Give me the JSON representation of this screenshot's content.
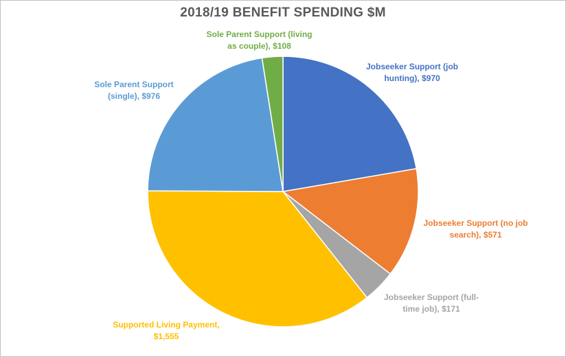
{
  "colors": {
    "title": "#595959",
    "border": "#bfbfbf"
  },
  "chart_data": {
    "type": "pie",
    "title": "2018/19 BENEFIT SPENDING $M",
    "start_angle_deg": 0,
    "direction": "clockwise",
    "slices": [
      {
        "label_lines": [
          "Jobseeker Support (job",
          "hunting), $970"
        ],
        "category": "Jobseeker Support (job hunting)",
        "value": 970,
        "color": "#4472C4"
      },
      {
        "label_lines": [
          "Jobseeker Support (no job",
          "search), $571"
        ],
        "category": "Jobseeker Support (no job search)",
        "value": 571,
        "color": "#ED7D31"
      },
      {
        "label_lines": [
          "Jobseeker Support (full-",
          "time job), $171"
        ],
        "category": "Jobseeker Support (full-time job)",
        "value": 171,
        "color": "#A5A5A5"
      },
      {
        "label_lines": [
          "Supported Living Payment,",
          "$1,555"
        ],
        "category": "Supported Living Payment",
        "value": 1555,
        "color": "#FFC000"
      },
      {
        "label_lines": [
          "Sole Parent Support",
          "(single), $976"
        ],
        "category": "Sole Parent Support (single)",
        "value": 976,
        "color": "#5B9BD5"
      },
      {
        "label_lines": [
          "Sole Parent Support (living",
          "as couple), $108"
        ],
        "category": "Sole Parent Support (living as couple)",
        "value": 108,
        "color": "#70AD47"
      }
    ]
  }
}
